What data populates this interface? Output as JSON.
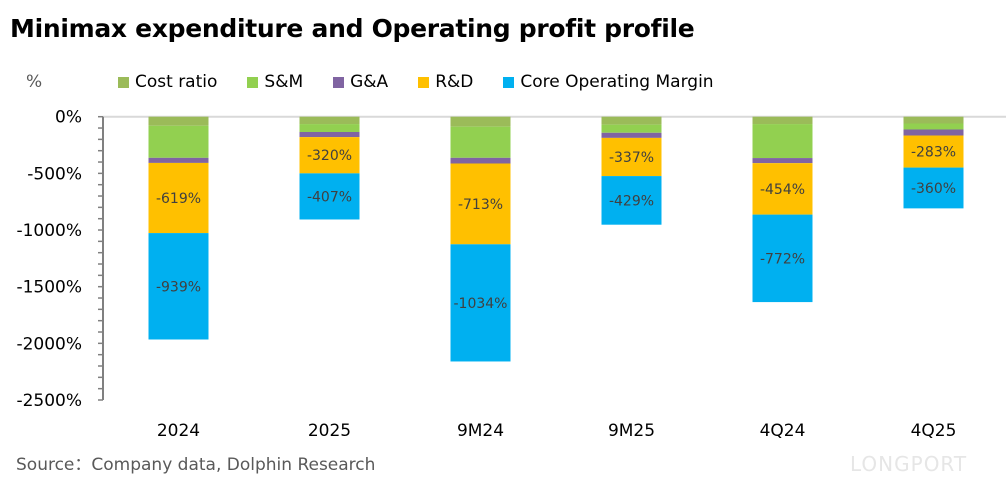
{
  "title": "Minimax expenditure and Operating profit profile",
  "unit_label": "%",
  "source": "Source：Company data, Dolphin Research",
  "watermark": "LONGPORT",
  "chart_data": {
    "type": "bar",
    "stacked": true,
    "categories": [
      "2024",
      "2025",
      "9M24",
      "9M25",
      "4Q24",
      "4Q25"
    ],
    "ylim": [
      -2500,
      0
    ],
    "yticks": [
      0,
      -500,
      -1000,
      -1500,
      -2000,
      -2500
    ],
    "ytick_labels": [
      "0%",
      "-500%",
      "-1000%",
      "-1500%",
      "-2000%",
      "-2500%"
    ],
    "legend_position": "top",
    "grid": false,
    "series": [
      {
        "name": "Cost ratio",
        "color": "#9BBB59",
        "values": [
          -80,
          -65,
          -88,
          -70,
          -65,
          -60
        ],
        "labels": false
      },
      {
        "name": "S&M",
        "color": "#92D050",
        "values": [
          -283,
          -70,
          -275,
          -72,
          -300,
          -53
        ],
        "labels": false
      },
      {
        "name": "G&A",
        "color": "#8064A2",
        "values": [
          -45,
          -45,
          -50,
          -45,
          -45,
          -53
        ],
        "labels": false
      },
      {
        "name": "R&D",
        "color": "#FFC000",
        "values": [
          -619,
          -320,
          -713,
          -337,
          -454,
          -283
        ],
        "labels": true,
        "label_text": [
          "-619%",
          "-320%",
          "-713%",
          "-337%",
          "-454%",
          "-283%"
        ]
      },
      {
        "name": "Core Operating Margin",
        "color": "#00B0F0",
        "values": [
          -939,
          -407,
          -1034,
          -429,
          -772,
          -360
        ],
        "labels": true,
        "label_text": [
          "-939%",
          "-407%",
          "-1034%",
          "-429%",
          "-772%",
          "-360%"
        ]
      }
    ]
  }
}
